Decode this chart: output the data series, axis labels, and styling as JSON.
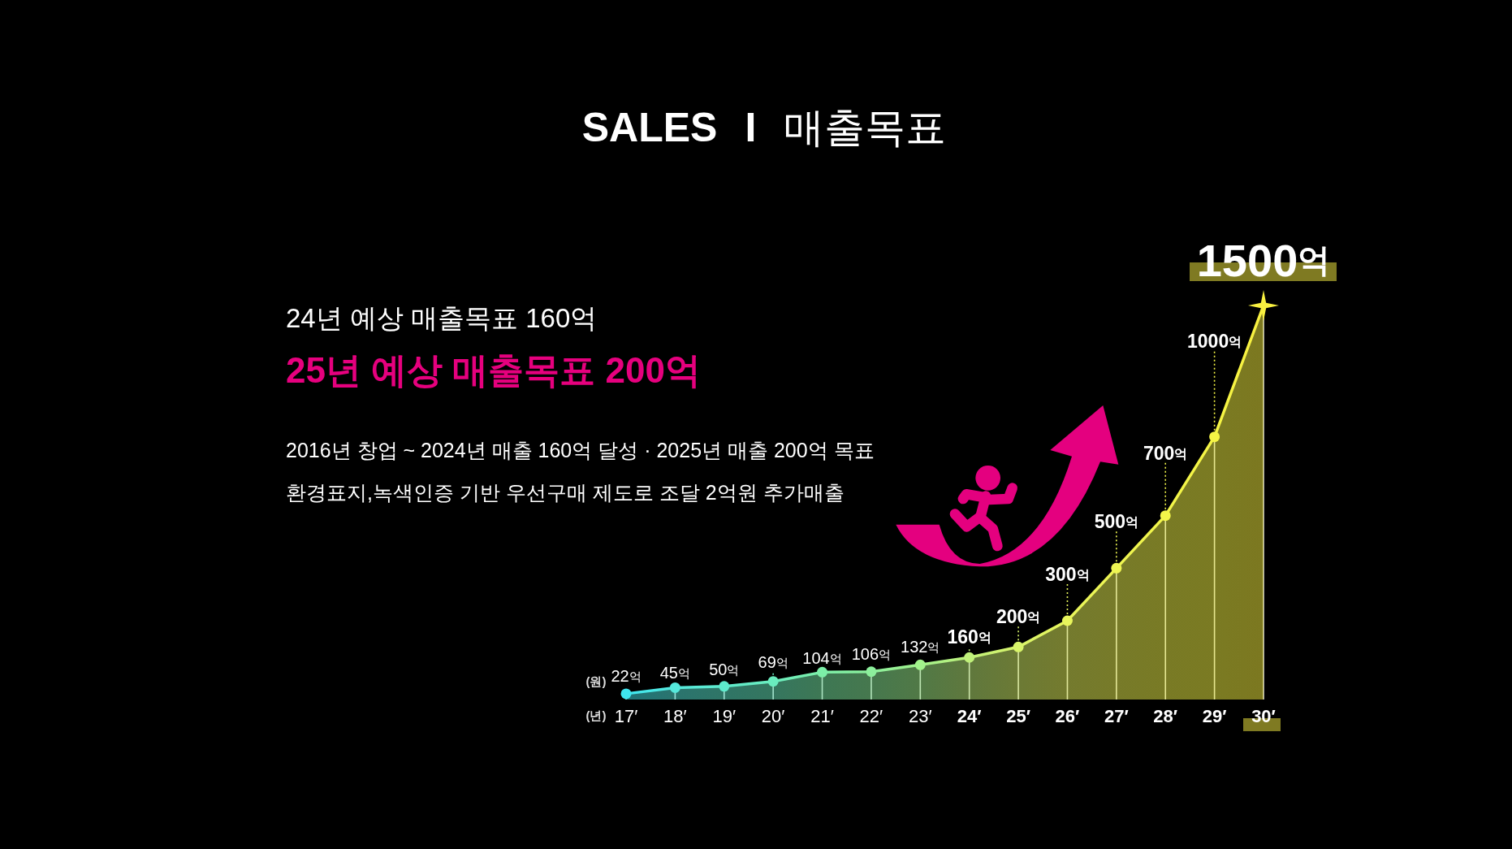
{
  "chart_data": {
    "type": "area",
    "title": "SALES I 매출목표",
    "annotations": [
      "24년 예상 매출목표 160억",
      "25년 예상 매출목표 200억",
      "2016년 창업 ~ 2024년 매출 160억 달성 · 2025년 매출 200억 목표",
      "환경표지,녹색인증 기반 우선구매 제도로 조달 2억원 추가매출"
    ],
    "xlabel": "(년)",
    "ylabel": "(원)",
    "categories": [
      "17′",
      "18′",
      "19′",
      "20′",
      "21′",
      "22′",
      "23′",
      "24′",
      "25′",
      "26′",
      "27′",
      "28′",
      "29′",
      "30′"
    ],
    "values": [
      22,
      45,
      50,
      69,
      104,
      106,
      132,
      160,
      200,
      300,
      500,
      700,
      1000,
      1500
    ],
    "value_labels": [
      "22억",
      "45억",
      "50억",
      "69억",
      "104억",
      "106억",
      "132억",
      "160억",
      "200억",
      "300억",
      "500억",
      "700억",
      "1000억",
      "1500억"
    ],
    "colors": [
      "#3ee6f0",
      "#55e8dc",
      "#5eeacc",
      "#6aecbe",
      "#7cefa8",
      "#8cf09c",
      "#a2f28c",
      "#bff07a",
      "#d8f46a",
      "#e8f55c",
      "#eef552",
      "#f2f54a",
      "#f5f545",
      "#f8f040"
    ],
    "grid": "x",
    "marker": "circle",
    "tick_labels": "x"
  }
}
